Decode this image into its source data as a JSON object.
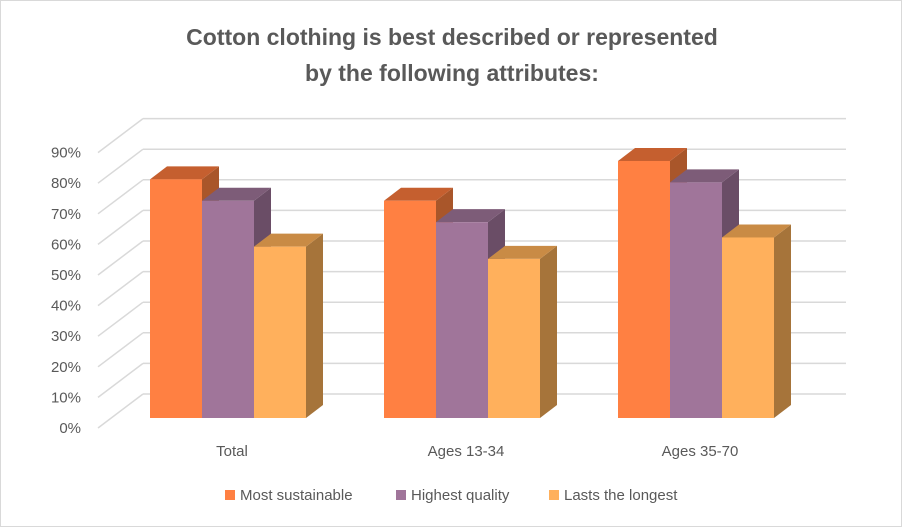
{
  "chart_data": {
    "type": "bar",
    "style": "3d-clustered-column",
    "title_lines": [
      "Cotton clothing is best described or represented",
      "by the following attributes:"
    ],
    "categories": [
      "Total",
      "Ages 13-34",
      "Ages 35-70"
    ],
    "series": [
      {
        "name": "Most sustainable",
        "values": [
          78,
          71,
          84
        ],
        "color": "#FF8042",
        "top": "#C55F2F",
        "side": "#A9562A"
      },
      {
        "name": "Highest quality",
        "values": [
          71,
          64,
          77
        ],
        "color": "#A0759A",
        "top": "#7D5C78",
        "side": "#6A4D66"
      },
      {
        "name": "Lasts the longest",
        "values": [
          56,
          52,
          59
        ],
        "color": "#FFB05C",
        "top": "#C98B45",
        "side": "#A6743A"
      }
    ],
    "y_ticks": [
      "0%",
      "10%",
      "20%",
      "30%",
      "40%",
      "50%",
      "60%",
      "70%",
      "80%",
      "90%"
    ],
    "ylim": [
      0,
      90
    ],
    "unit": "%",
    "grid": true,
    "legend_position": "bottom"
  }
}
